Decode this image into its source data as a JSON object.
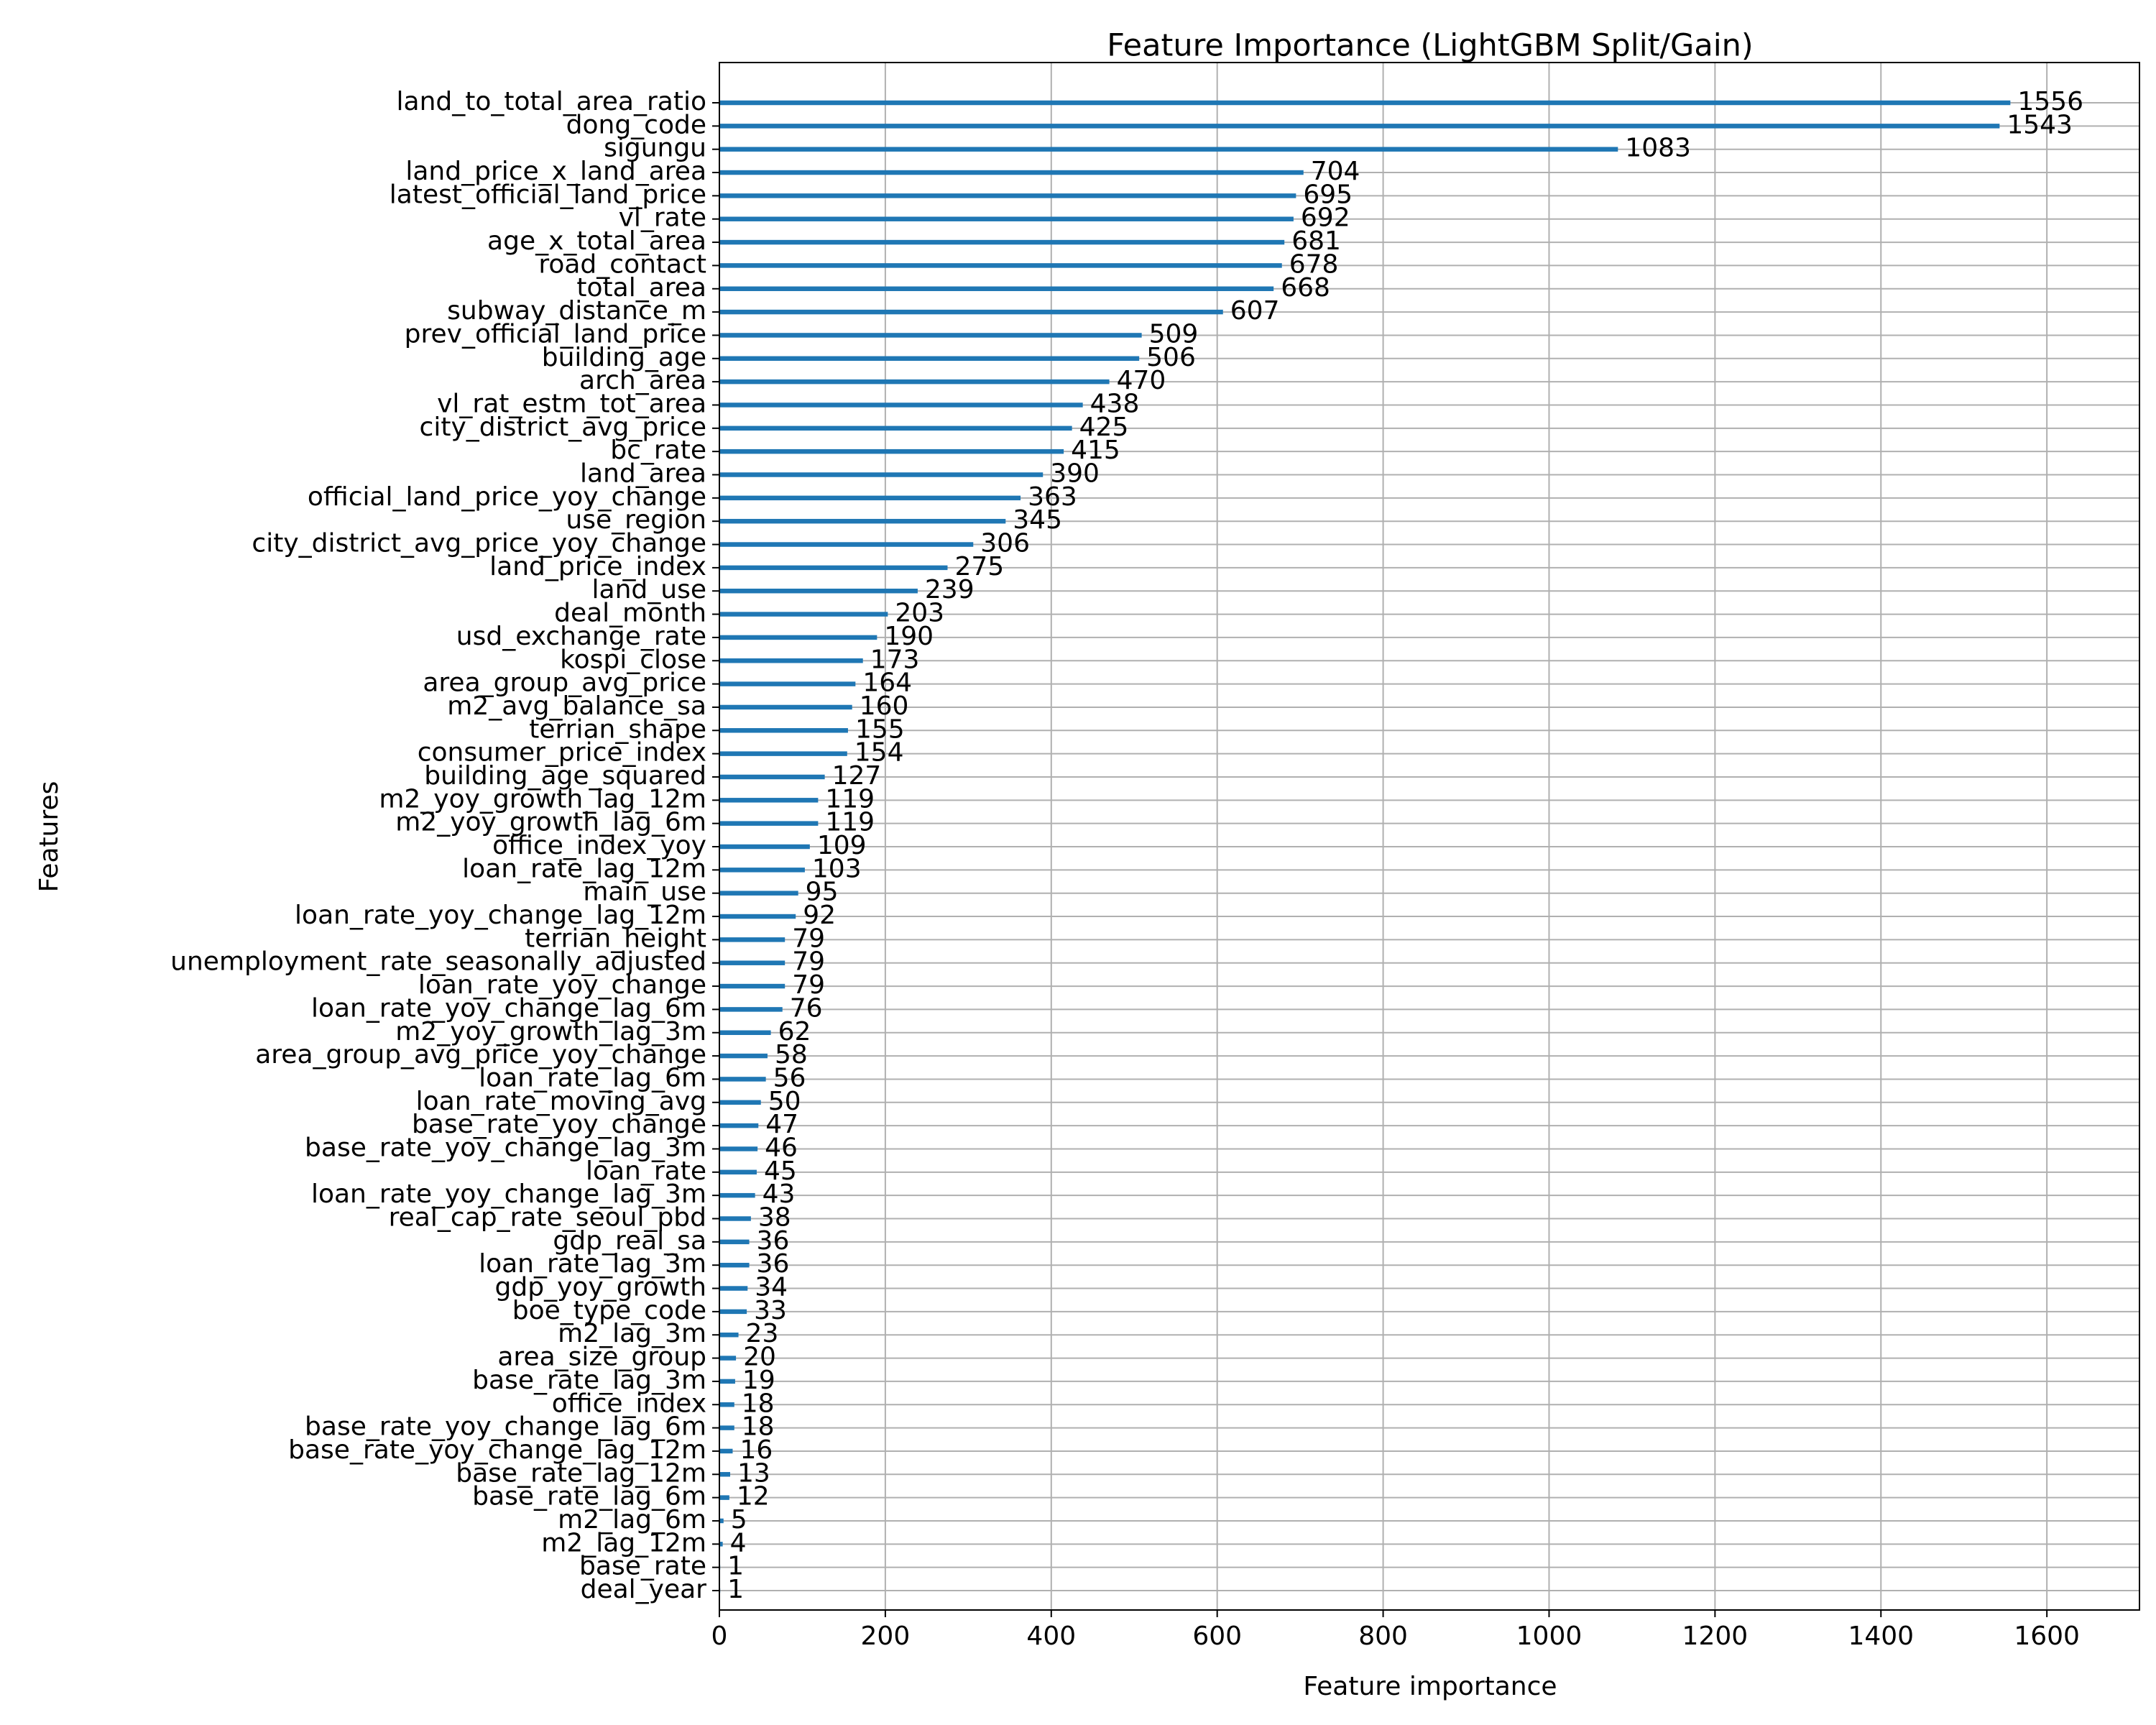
{
  "chart_data": {
    "type": "barh",
    "title": "Feature Importance (LightGBM Split/Gain)",
    "x_label": "Feature importance",
    "y_label": "Features",
    "categories": [
      "land_to_total_area_ratio",
      "dong_code",
      "sigungu",
      "land_price_x_land_area",
      "latest_official_land_price",
      "vl_rate",
      "age_x_total_area",
      "road_contact",
      "total_area",
      "subway_distance_m",
      "prev_official_land_price",
      "building_age",
      "arch_area",
      "vl_rat_estm_tot_area",
      "city_district_avg_price",
      "bc_rate",
      "land_area",
      "official_land_price_yoy_change",
      "use_region",
      "city_district_avg_price_yoy_change",
      "land_price_index",
      "land_use",
      "deal_month",
      "usd_exchange_rate",
      "kospi_close",
      "area_group_avg_price",
      "m2_avg_balance_sa",
      "terrian_shape",
      "consumer_price_index",
      "building_age_squared",
      "m2_yoy_growth_lag_12m",
      "m2_yoy_growth_lag_6m",
      "office_index_yoy",
      "loan_rate_lag_12m",
      "main_use",
      "loan_rate_yoy_change_lag_12m",
      "terrian_height",
      "unemployment_rate_seasonally_adjusted",
      "loan_rate_yoy_change",
      "loan_rate_yoy_change_lag_6m",
      "m2_yoy_growth_lag_3m",
      "area_group_avg_price_yoy_change",
      "loan_rate_lag_6m",
      "loan_rate_moving_avg",
      "base_rate_yoy_change",
      "base_rate_yoy_change_lag_3m",
      "loan_rate",
      "loan_rate_yoy_change_lag_3m",
      "real_cap_rate_seoul_pbd",
      "gdp_real_sa",
      "loan_rate_lag_3m",
      "gdp_yoy_growth",
      "boe_type_code",
      "m2_lag_3m",
      "area_size_group",
      "base_rate_lag_3m",
      "office_index",
      "base_rate_yoy_change_lag_6m",
      "base_rate_yoy_change_lag_12m",
      "base_rate_lag_12m",
      "base_rate_lag_6m",
      "m2_lag_6m",
      "m2_lag_12m",
      "base_rate",
      "deal_year"
    ],
    "values": [
      1556,
      1543,
      1083,
      704,
      695,
      692,
      681,
      678,
      668,
      607,
      509,
      506,
      470,
      438,
      425,
      415,
      390,
      363,
      345,
      306,
      275,
      239,
      203,
      190,
      173,
      164,
      160,
      155,
      154,
      127,
      119,
      119,
      109,
      103,
      95,
      92,
      79,
      79,
      79,
      76,
      62,
      58,
      56,
      50,
      47,
      46,
      45,
      43,
      38,
      36,
      36,
      34,
      33,
      23,
      20,
      19,
      18,
      18,
      16,
      13,
      12,
      5,
      4,
      1,
      1
    ],
    "color": "#1f77b4",
    "xlim": [
      0,
      1711.6
    ],
    "xticks": [
      0,
      200,
      400,
      600,
      800,
      1000,
      1200,
      1400,
      1600
    ],
    "grid": true
  }
}
